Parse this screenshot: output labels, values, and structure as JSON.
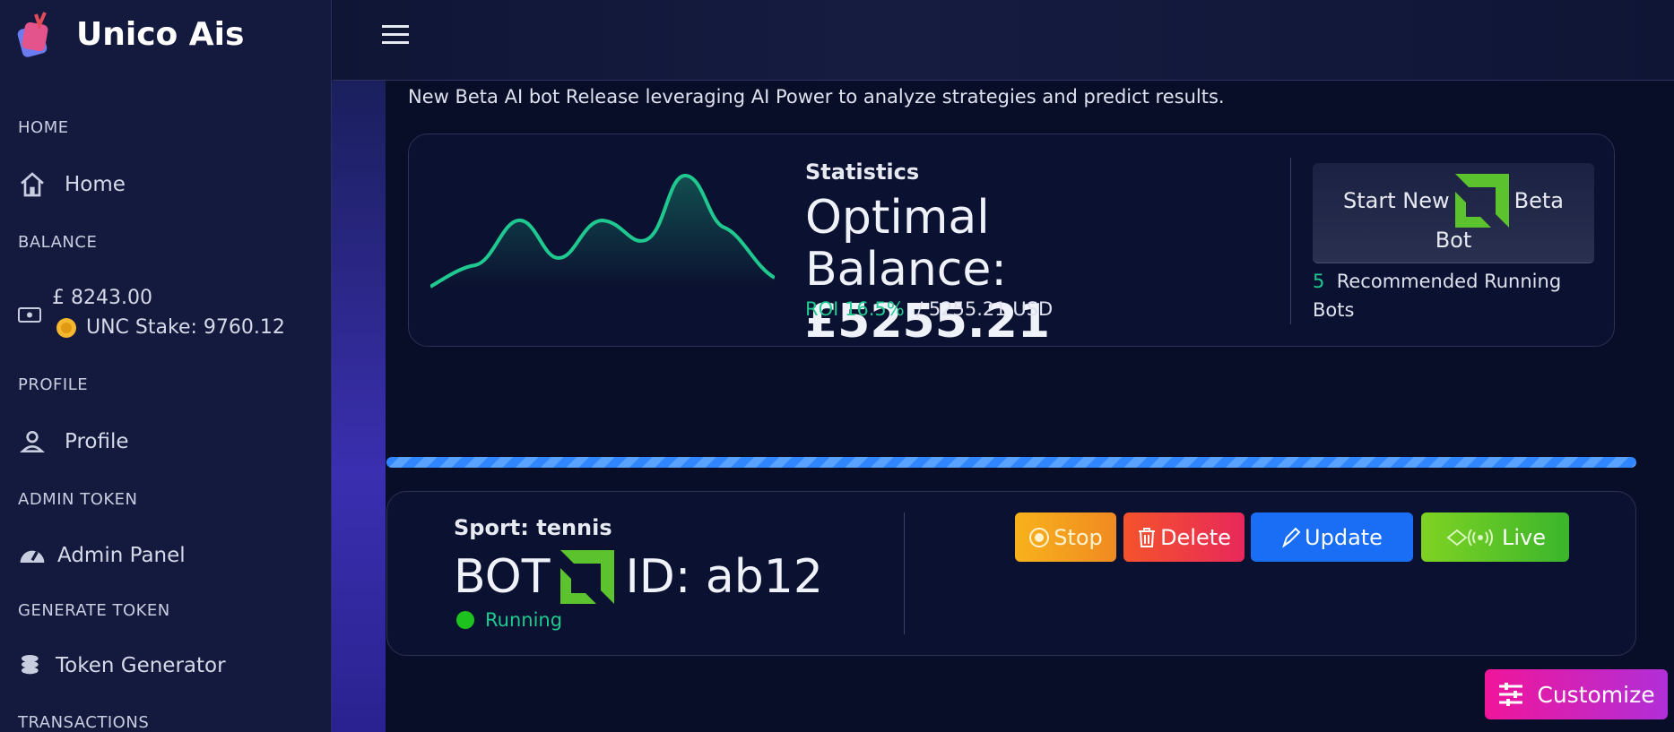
{
  "sidebar": {
    "brand": "Unico Ais",
    "sections": [
      {
        "label": "HOME",
        "item": "Home"
      },
      {
        "label": "BALANCE",
        "balance": "£ 8243.00",
        "stake": "UNC Stake: 9760.12"
      },
      {
        "label": "PROFILE",
        "item": "Profile"
      },
      {
        "label": "ADMIN TOKEN",
        "item": "Admin Panel"
      },
      {
        "label": "GENERATE TOKEN",
        "item": "Token Generator"
      },
      {
        "label": "TRANSACTIONS"
      }
    ]
  },
  "intro": "New Beta AI bot Release leveraging AI Power to analyze strategies and predict results.",
  "stats": {
    "heading": "Statistics",
    "balance_label": "Optimal Balance:",
    "balance": "£5255.21",
    "roi": "ROI 16.5%",
    "usd": "/ 5255.21 USD",
    "button_before": "Start New",
    "button_after": "Beta",
    "button_last": "Bot",
    "recommended_count": "5",
    "recommended_text": "Recommended Running Bots"
  },
  "bot": {
    "sport": "Sport: tennis",
    "prefix": "BOT",
    "id": "ID: ab12",
    "status": "Running",
    "buttons": [
      "Stop",
      "Delete",
      "Update",
      "Live"
    ]
  },
  "customize": "Customize"
}
